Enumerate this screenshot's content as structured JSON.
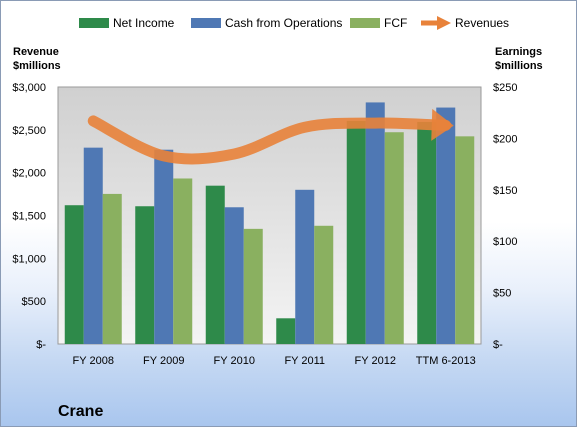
{
  "legend": {
    "net_income": "Net Income",
    "cfo": "Cash from Operations",
    "fcf": "FCF",
    "revenues": "Revenues"
  },
  "left_axis_title": [
    "Revenue",
    "$millions"
  ],
  "right_axis_title": [
    "Earnings",
    "$millions"
  ],
  "company": "Crane",
  "colors": {
    "net_income": "#2e8a4a",
    "cfo": "#4f78b4",
    "fcf": "#8ab060",
    "revenues": "#e8823a",
    "plot_bg_top": "#d0d0d0",
    "plot_bg_bottom": "#f4f4f4"
  },
  "chart_data": {
    "type": "bar",
    "categories": [
      "FY 2008",
      "FY 2009",
      "FY 2010",
      "FY 2011",
      "FY 2012",
      "TTM 6-2013"
    ],
    "series": [
      {
        "name": "Net Income",
        "axis": "right",
        "values": [
          135,
          134,
          154,
          25,
          217,
          216
        ]
      },
      {
        "name": "Cash from Operations",
        "axis": "right",
        "values": [
          191,
          189,
          133,
          150,
          235,
          230
        ]
      },
      {
        "name": "FCF",
        "axis": "right",
        "values": [
          146,
          161,
          112,
          115,
          206,
          202
        ]
      },
      {
        "name": "Revenues",
        "type": "line",
        "axis": "left",
        "values": [
          2604,
          2196,
          2218,
          2530,
          2579,
          2552
        ]
      }
    ],
    "left_axis": {
      "ylim": [
        0,
        3000
      ],
      "ticks": [
        "$-",
        "$500",
        "$1,000",
        "$1,500",
        "$2,000",
        "$2,500",
        "$3,000"
      ]
    },
    "right_axis": {
      "ylim": [
        0,
        250
      ],
      "ticks": [
        "$-",
        "$50",
        "$100",
        "$150",
        "$200",
        "$250"
      ]
    },
    "grid": false,
    "legend_position": "top"
  }
}
